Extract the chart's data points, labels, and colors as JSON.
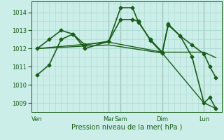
{
  "background_color": "#cceee8",
  "grid_color": "#aad8d0",
  "line_color": "#1a5c1a",
  "vline_color": "#556655",
  "xlabel": "Pression niveau de la mer( hPa )",
  "ylim": [
    1008.5,
    1014.6
  ],
  "yticks": [
    1009,
    1010,
    1011,
    1012,
    1013,
    1014
  ],
  "xlim": [
    0,
    32
  ],
  "day_ticks": [
    1,
    13,
    15,
    22,
    29
  ],
  "day_labels": [
    "Ven",
    "Mar",
    "Sam",
    "Dim",
    "Lun"
  ],
  "vlines": [
    13,
    15,
    22,
    29
  ],
  "series1": {
    "x": [
      1,
      3,
      5,
      7,
      9,
      13,
      15,
      17,
      18,
      20,
      22,
      23,
      25,
      27,
      29,
      30,
      31
    ],
    "y": [
      1010.55,
      1011.1,
      1012.5,
      1012.8,
      1012.0,
      1012.4,
      1014.25,
      1014.25,
      1013.45,
      1012.5,
      1011.8,
      1013.3,
      1012.7,
      1011.55,
      1009.0,
      1009.3,
      1008.7
    ],
    "lw": 1.2,
    "ms": 2.5
  },
  "series2": {
    "x": [
      1,
      3,
      5,
      7,
      9,
      13,
      15,
      17,
      18,
      20,
      22,
      23,
      25,
      27,
      29,
      30,
      31
    ],
    "y": [
      1012.0,
      1012.5,
      1013.0,
      1012.8,
      1012.2,
      1012.4,
      1013.6,
      1013.6,
      1013.5,
      1012.45,
      1011.75,
      1013.35,
      1012.7,
      1012.2,
      1011.7,
      1011.0,
      1010.4
    ],
    "lw": 1.2,
    "ms": 2.5
  },
  "series3": {
    "x": [
      1,
      13,
      22,
      29,
      31
    ],
    "y": [
      1012.0,
      1012.2,
      1011.75,
      1009.0,
      1008.7
    ],
    "lw": 1.0,
    "ms": 0
  },
  "series4": {
    "x": [
      1,
      13,
      22,
      29,
      31
    ],
    "y": [
      1012.0,
      1012.35,
      1011.8,
      1011.8,
      1011.5
    ],
    "lw": 1.0,
    "ms": 0
  }
}
